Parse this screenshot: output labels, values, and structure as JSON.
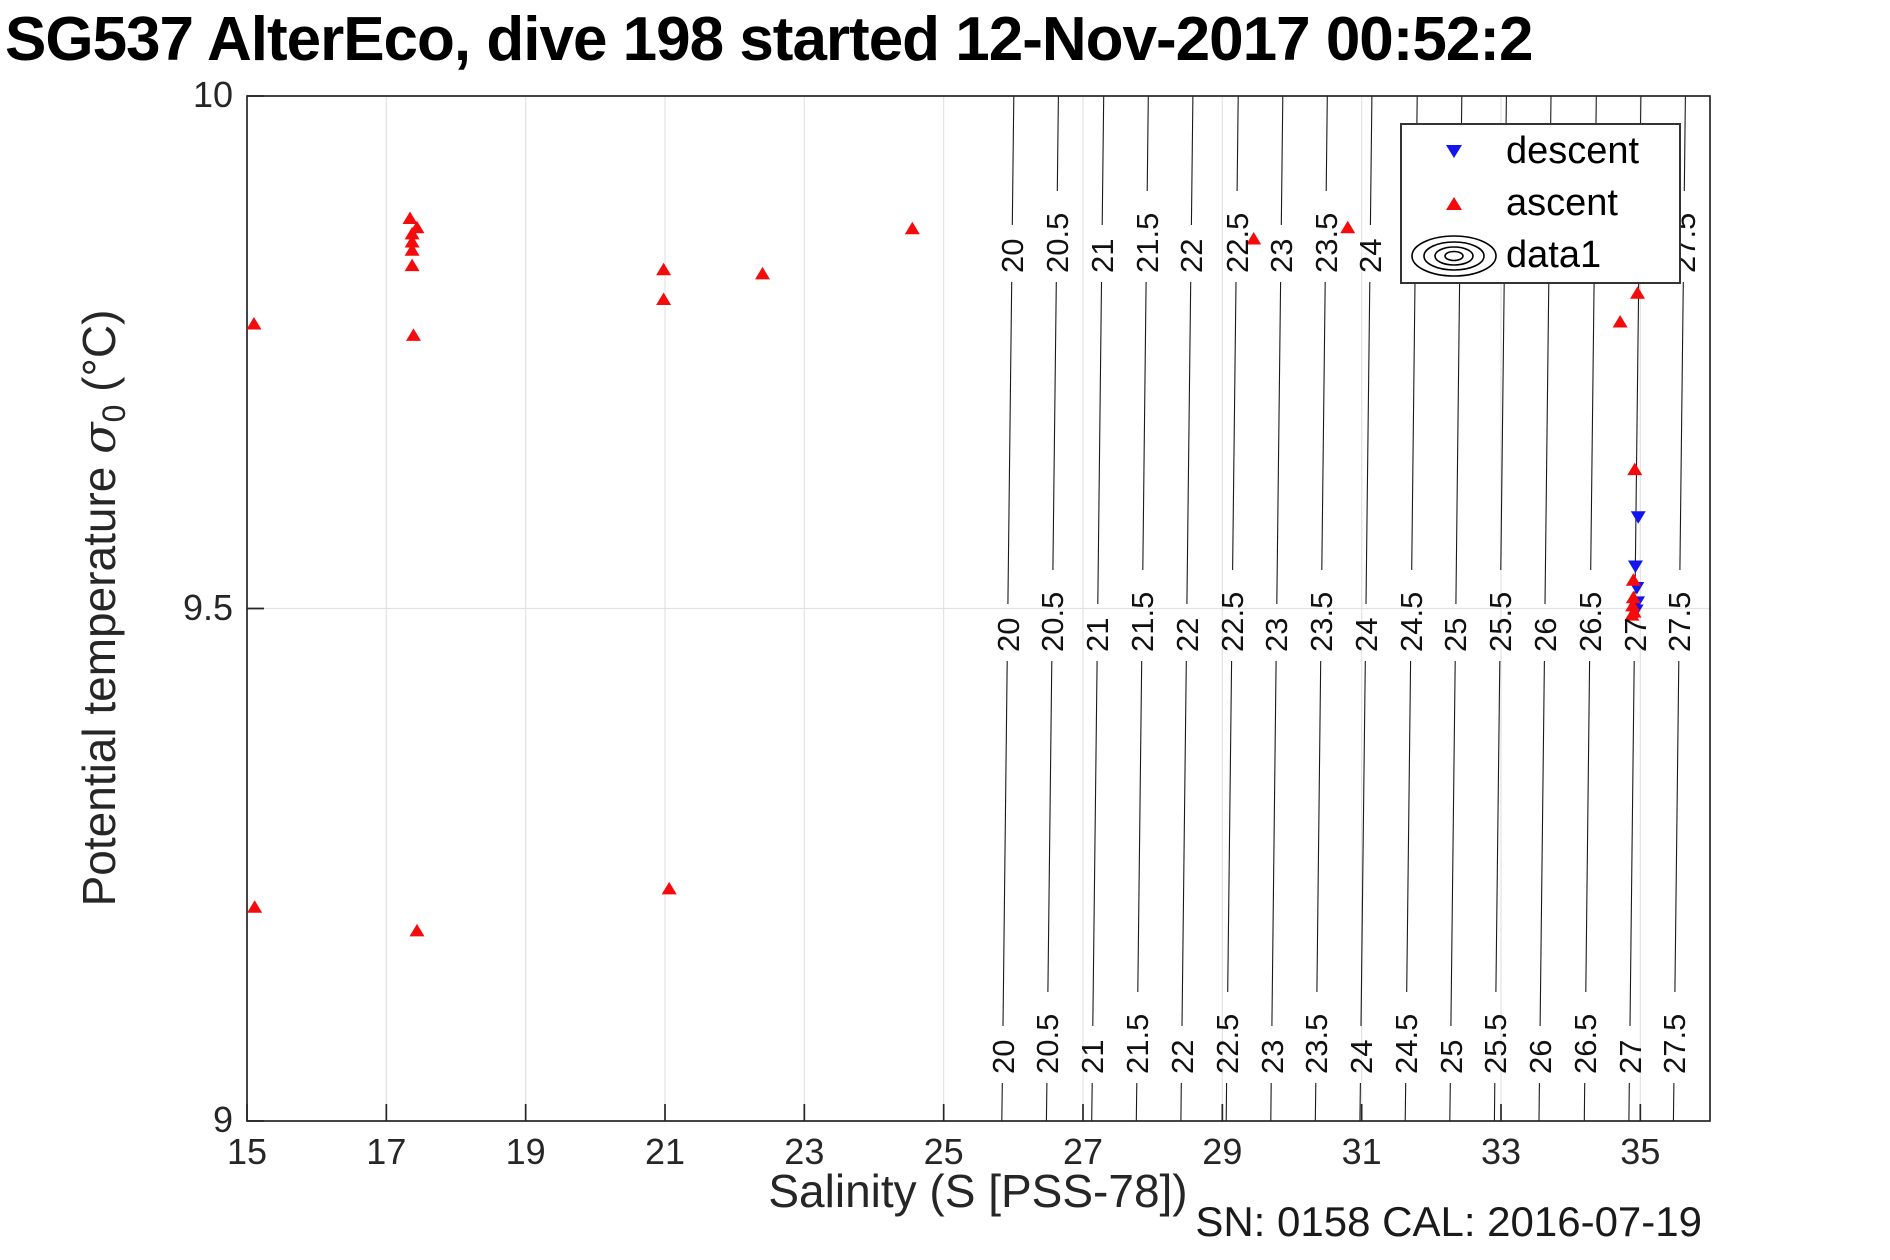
{
  "title": "SG537 AlterEco, dive 198 started 12-Nov-2017 00:52:2",
  "footer": "SN: 0158  CAL: 2016-07-19",
  "axes": {
    "xlabel": "Salinity (S [PSS-78])",
    "ylabel_pre": "Potential temperature ",
    "ylabel_sigma": "σ",
    "ylabel_sub": "0",
    "ylabel_post": " (°C)",
    "x_ticks": [
      "15",
      "17",
      "19",
      "21",
      "23",
      "25",
      "27",
      "29",
      "31",
      "33",
      "35"
    ],
    "x_tick_values": [
      15,
      17,
      19,
      21,
      23,
      25,
      27,
      29,
      31,
      33,
      35
    ],
    "y_ticks": [
      "10",
      "9.5",
      "9"
    ],
    "y_tick_values": [
      10,
      9.5,
      9
    ],
    "xlim": [
      15,
      36
    ],
    "ylim": [
      9,
      10
    ]
  },
  "legend": {
    "items": [
      {
        "label": "descent",
        "marker": "triangle-down",
        "color": "#1414f0"
      },
      {
        "label": "ascent",
        "marker": "triangle-up",
        "color": "#f40b0b"
      },
      {
        "label": "data1",
        "marker": "contour-rings",
        "color": "#000000"
      }
    ]
  },
  "styles": {
    "contour_color": "#1a1a1a",
    "grid_color": "#e2e2e2",
    "axis_color": "#262626",
    "descent_color": "#1414f0",
    "ascent_color": "#f40b0b"
  },
  "chart_data": {
    "type": "scatter",
    "title": "SG537 AlterEco, dive 198 started 12-Nov-2017 00:52:2",
    "xlabel": "Salinity (S [PSS-78])",
    "ylabel": "Potential temperature sigma_0 (degC)",
    "xlim": [
      15,
      36
    ],
    "ylim": [
      9,
      10
    ],
    "grid": true,
    "legend_position": "top-right",
    "series": [
      {
        "name": "descent",
        "marker": "triangle-down",
        "color": "#1414f0",
        "points": [
          [
            34.97,
            9.589
          ],
          [
            34.93,
            9.541
          ],
          [
            34.95,
            9.52
          ],
          [
            34.96,
            9.506
          ],
          [
            34.94,
            9.498
          ]
        ]
      },
      {
        "name": "ascent",
        "marker": "triangle-up",
        "color": "#f40b0b",
        "points": [
          [
            15.1,
            9.778
          ],
          [
            17.34,
            9.881
          ],
          [
            17.44,
            9.872
          ],
          [
            17.37,
            9.866
          ],
          [
            17.37,
            9.858
          ],
          [
            17.37,
            9.85
          ],
          [
            17.37,
            9.835
          ],
          [
            17.39,
            9.767
          ],
          [
            20.98,
            9.831
          ],
          [
            20.98,
            9.802
          ],
          [
            22.4,
            9.827
          ],
          [
            24.55,
            9.871
          ],
          [
            29.45,
            9.861
          ],
          [
            30.8,
            9.872
          ],
          [
            34.96,
            9.808
          ],
          [
            34.71,
            9.78
          ],
          [
            34.92,
            9.636
          ],
          [
            34.9,
            9.528
          ],
          [
            34.9,
            9.511
          ],
          [
            34.89,
            9.503
          ],
          [
            34.91,
            9.497
          ],
          [
            34.88,
            9.494
          ],
          [
            15.11,
            9.209
          ],
          [
            17.44,
            9.186
          ],
          [
            21.06,
            9.227
          ]
        ]
      }
    ],
    "contours": {
      "name": "data1",
      "variable": "potential density sigma_0",
      "levels": [
        20,
        20.5,
        21,
        21.5,
        22,
        22.5,
        23,
        23.5,
        24,
        24.5,
        25,
        25.5,
        26,
        26.5,
        27,
        27.5
      ],
      "labels": [
        "20",
        "20.5",
        "21",
        "21.5",
        "22",
        "22.5",
        "23",
        "23.5",
        "24",
        "24.5",
        "25",
        "25.5",
        "26",
        "26.5",
        "27",
        "27.5"
      ],
      "salinity_at_mid_temp": [
        25.95,
        26.59,
        27.24,
        27.88,
        28.52,
        29.17,
        29.81,
        30.45,
        31.09,
        31.74,
        32.38,
        33.02,
        33.66,
        34.31,
        34.95,
        35.59
      ],
      "label_row_temps": [
        9.83,
        9.46,
        9.05
      ]
    }
  }
}
